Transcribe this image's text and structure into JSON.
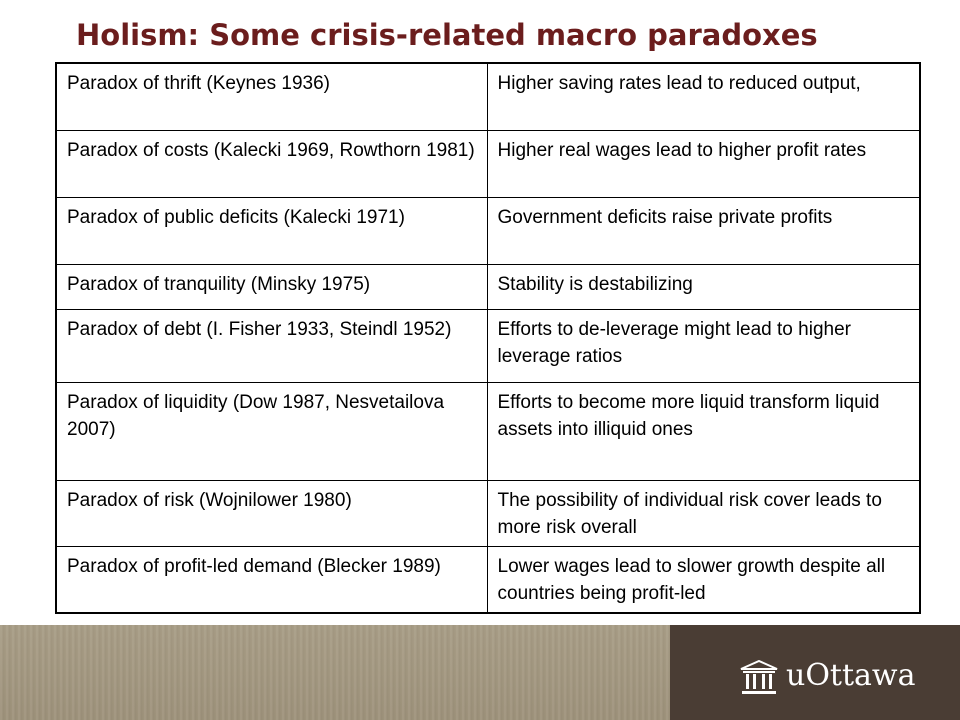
{
  "title": "Holism: Some crisis-related macro paradoxes",
  "rows": [
    {
      "paradox": "Paradox of thrift (Keynes 1936)",
      "effect": "Higher saving rates lead to reduced output,"
    },
    {
      "paradox": "Paradox of costs (Kalecki 1969, Rowthorn 1981)",
      "effect": "Higher real wages lead to higher profit rates"
    },
    {
      "paradox": "Paradox of public deficits (Kalecki 1971)",
      "effect": "Government deficits raise private profits"
    },
    {
      "paradox": "Paradox of tranquility (Minsky 1975)",
      "effect": "Stability is destabilizing"
    },
    {
      "paradox": "Paradox of debt (I. Fisher 1933, Steindl 1952)",
      "effect": "Efforts to de-leverage might lead to higher leverage ratios"
    },
    {
      "paradox": "Paradox of liquidity (Dow 1987, Nesvetailova 2007)",
      "effect": "Efforts to become more liquid transform liquid assets into illiquid ones"
    },
    {
      "paradox": "Paradox of risk (Wojnilower 1980)",
      "effect": "The possibility of individual risk cover leads to more risk overall"
    },
    {
      "paradox": "Paradox of profit-led demand (Blecker 1989)",
      "effect": "Lower wages lead to slower growth despite all countries being profit-led"
    }
  ],
  "footer": {
    "logo_text": "uOttawa",
    "logo_icon": "university-building-icon",
    "colors": {
      "band": "#a39882",
      "logo_panel": "#4a3d34",
      "title": "#6b1d1d"
    }
  }
}
